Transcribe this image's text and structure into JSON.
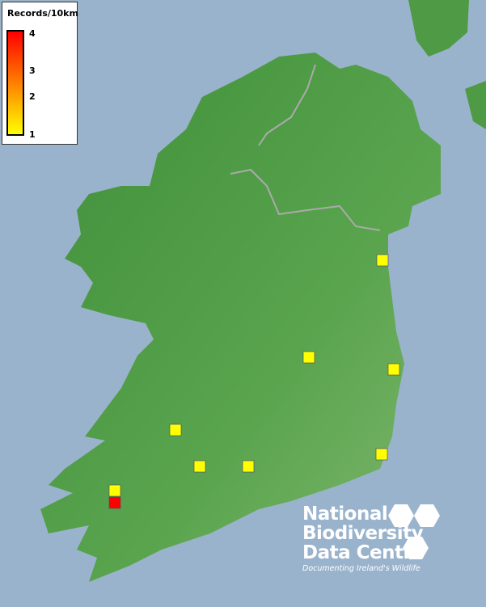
{
  "legend": {
    "title": "Records/10km",
    "ticks": [
      "4",
      "3",
      "2",
      "1"
    ],
    "color_min": "#ffff00",
    "color_max": "#ff0000"
  },
  "records": [
    {
      "value": 1
    },
    {
      "value": 1
    },
    {
      "value": 1
    },
    {
      "value": 1
    },
    {
      "value": 1
    },
    {
      "value": 1
    },
    {
      "value": 1
    },
    {
      "value": 1
    },
    {
      "value": 4
    }
  ],
  "logo": {
    "line1": "National",
    "line2": "Biodiversity",
    "line3": "Data Centre",
    "tagline": "Documenting Ireland's Wildlife"
  },
  "colors": {
    "sea": "#9ab3cc",
    "land": "#4f9a45"
  }
}
